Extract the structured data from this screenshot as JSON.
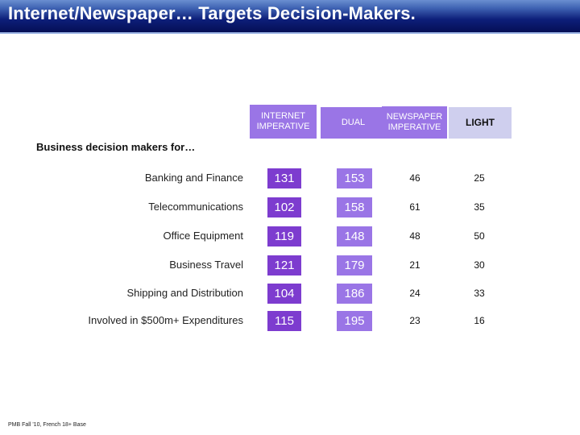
{
  "title": "Internet/Newspaper… Targets Decision-Makers.",
  "columns": {
    "internet_imperative": "INTERNET\nIMPERATIVE",
    "dual": "DUAL",
    "newspaper_imperative": "NEWSPAPER\nIMPERATIVE",
    "light": "LIGHT"
  },
  "subtitle": "Business decision makers for…",
  "rows": [
    {
      "label": "Banking and Finance",
      "internet": "131",
      "dual": "153",
      "newspaper": "46",
      "light": "25"
    },
    {
      "label": "Telecommunications",
      "internet": "102",
      "dual": "158",
      "newspaper": "61",
      "light": "35"
    },
    {
      "label": "Office Equipment",
      "internet": "119",
      "dual": "148",
      "newspaper": "48",
      "light": "50"
    },
    {
      "label": "Business Travel",
      "internet": "121",
      "dual": "179",
      "newspaper": "21",
      "light": "30"
    },
    {
      "label": "Shipping and Distribution",
      "internet": "104",
      "dual": "186",
      "newspaper": "24",
      "light": "33"
    },
    {
      "label": "Involved in $500m+ Expenditures",
      "internet": "115",
      "dual": "195",
      "newspaper": "23",
      "light": "16"
    }
  ],
  "footnote": "PMB Fall '10, French 18+ Base",
  "colors": {
    "internet_cell": "#7d3ccf",
    "dual_cell": "#9a75e6",
    "light_header": "#cfcfee",
    "title_bar": "#0d1f7a"
  }
}
